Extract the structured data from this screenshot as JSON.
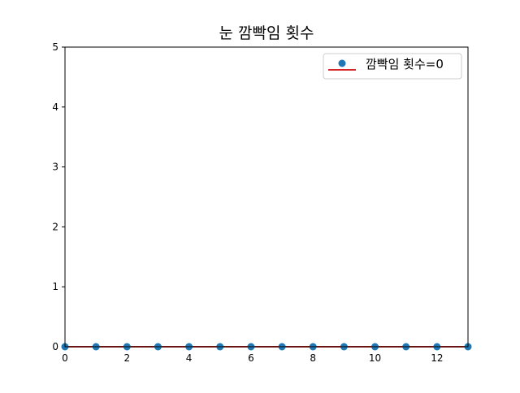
{
  "chart_data": {
    "type": "scatter",
    "title": "눈 깜빡임 횟수",
    "xlabel": "",
    "ylabel": "",
    "xlim": [
      0,
      13
    ],
    "ylim": [
      0,
      5
    ],
    "x_ticks": [
      "0",
      "2",
      "4",
      "6",
      "8",
      "10",
      "12"
    ],
    "y_ticks": [
      "0",
      "1",
      "2",
      "3",
      "4",
      "5"
    ],
    "grid": false,
    "legend_position": "top-right",
    "series": [
      {
        "name": "깜빡임 횟수=0",
        "marker": "circle",
        "color": "#1f77b4",
        "baseline_color": "#d62728",
        "x": [
          0,
          1,
          2,
          3,
          4,
          5,
          6,
          7,
          8,
          9,
          10,
          11,
          12,
          13
        ],
        "y": [
          0,
          0,
          0,
          0,
          0,
          0,
          0,
          0,
          0,
          0,
          0,
          0,
          0,
          0
        ]
      }
    ]
  }
}
